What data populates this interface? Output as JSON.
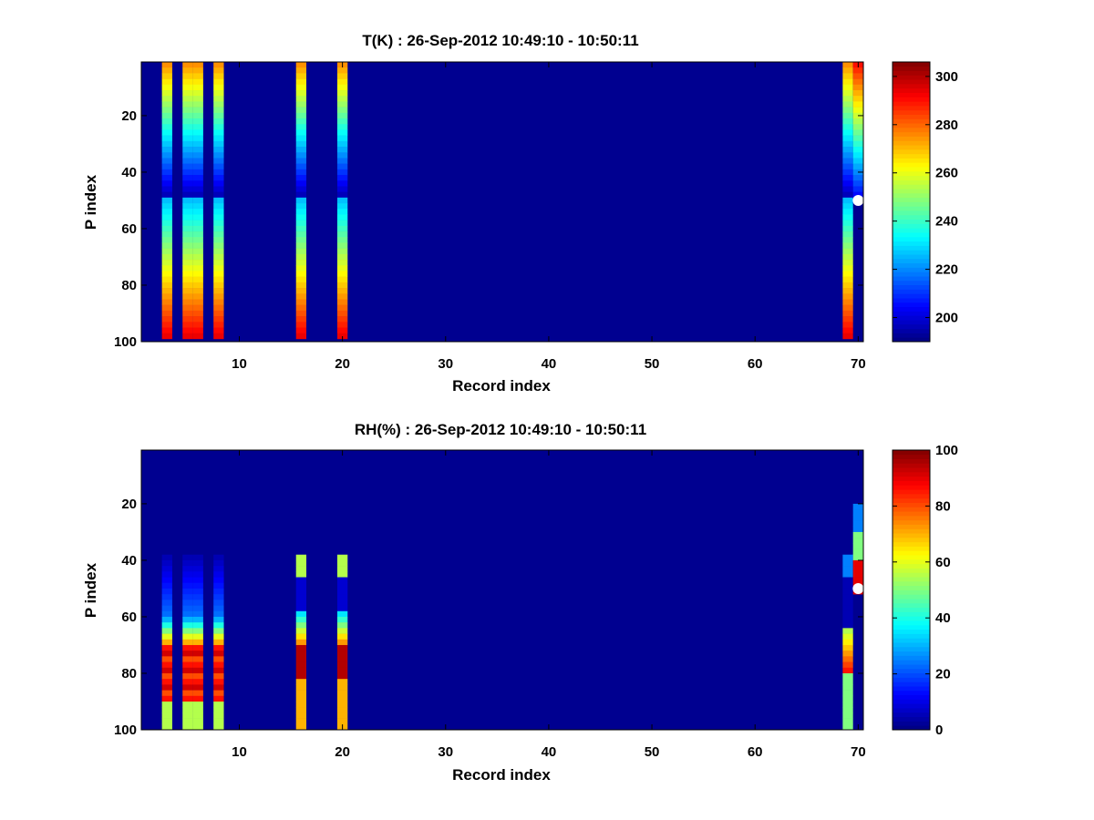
{
  "chart_data": [
    {
      "type": "heatmap",
      "title": "T(K) : 26-Sep-2012 10:49:10 - 10:50:11",
      "xlabel": "Record index",
      "ylabel": "P index",
      "xlim": [
        0.5,
        70.5
      ],
      "ylim": [
        1,
        100
      ],
      "y_reversed": true,
      "xticks": [
        10,
        20,
        30,
        40,
        50,
        60,
        70
      ],
      "yticks": [
        20,
        40,
        60,
        80,
        100
      ],
      "colormap": "jet",
      "clim": [
        190,
        306
      ],
      "colorbar_ticks": [
        200,
        220,
        240,
        260,
        280,
        300
      ],
      "background_value": 190,
      "marker": {
        "x": 70,
        "y": 50,
        "color": "#ffffff"
      },
      "columns": [
        {
          "x": 3,
          "p_start": 1,
          "p_end": 98,
          "profile": "temp"
        },
        {
          "x": 5,
          "p_start": 1,
          "p_end": 98,
          "profile": "temp"
        },
        {
          "x": 6,
          "p_start": 1,
          "p_end": 98,
          "profile": "temp"
        },
        {
          "x": 8,
          "p_start": 1,
          "p_end": 98,
          "profile": "temp"
        },
        {
          "x": 16,
          "p_start": 1,
          "p_end": 98,
          "profile": "temp"
        },
        {
          "x": 20,
          "p_start": 1,
          "p_end": 98,
          "profile": "temp"
        },
        {
          "x": 69,
          "p_start": 1,
          "p_end": 98,
          "profile": "temp"
        },
        {
          "x": 70,
          "p_start": 1,
          "p_end": 50,
          "profile": "temp_last"
        }
      ]
    },
    {
      "type": "heatmap",
      "title": "RH(%) : 26-Sep-2012 10:49:10 - 10:50:11",
      "xlabel": "Record index",
      "ylabel": "P index",
      "xlim": [
        0.5,
        70.5
      ],
      "ylim": [
        1,
        100
      ],
      "y_reversed": true,
      "xticks": [
        10,
        20,
        30,
        40,
        50,
        60,
        70
      ],
      "yticks": [
        20,
        40,
        60,
        80,
        100
      ],
      "colormap": "jet",
      "clim": [
        0,
        100
      ],
      "colorbar_ticks": [
        0,
        20,
        40,
        60,
        80,
        100
      ],
      "background_value": 0,
      "marker": {
        "x": 70,
        "y": 50,
        "color": "#ffffff"
      },
      "columns": [
        {
          "x": 3,
          "p_start": 38,
          "p_end": 98,
          "profile": "rh"
        },
        {
          "x": 5,
          "p_start": 38,
          "p_end": 98,
          "profile": "rh"
        },
        {
          "x": 6,
          "p_start": 38,
          "p_end": 98,
          "profile": "rh"
        },
        {
          "x": 8,
          "p_start": 38,
          "p_end": 98,
          "profile": "rh"
        },
        {
          "x": 16,
          "p_start": 38,
          "p_end": 98,
          "profile": "rh16"
        },
        {
          "x": 20,
          "p_start": 38,
          "p_end": 98,
          "profile": "rh16"
        },
        {
          "x": 69,
          "p_start": 38,
          "p_end": 98,
          "profile": "rh69"
        },
        {
          "x": 70,
          "p_start": 20,
          "p_end": 50,
          "profile": "rh70"
        }
      ]
    }
  ]
}
